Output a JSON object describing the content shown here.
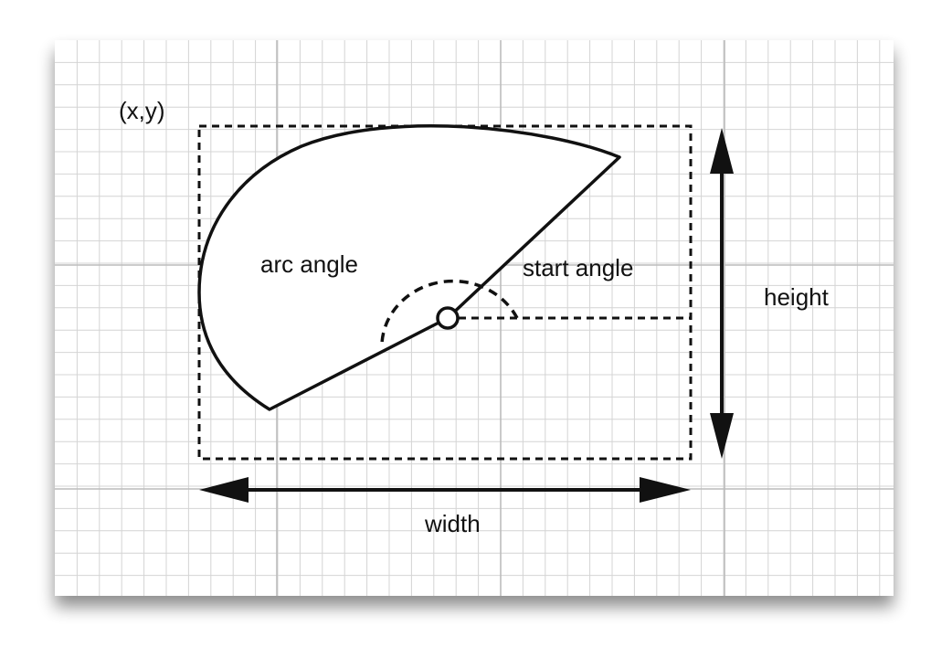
{
  "labels": {
    "origin": "(x,y)",
    "arc_angle": "arc angle",
    "start_angle": "start angle",
    "height": "height",
    "width": "width"
  },
  "colors": {
    "paper": "#ffffff",
    "grid_minor": "#d4d4d4",
    "grid_major": "#bcbcbc",
    "ink": "#111111",
    "shadow": "#000000"
  }
}
